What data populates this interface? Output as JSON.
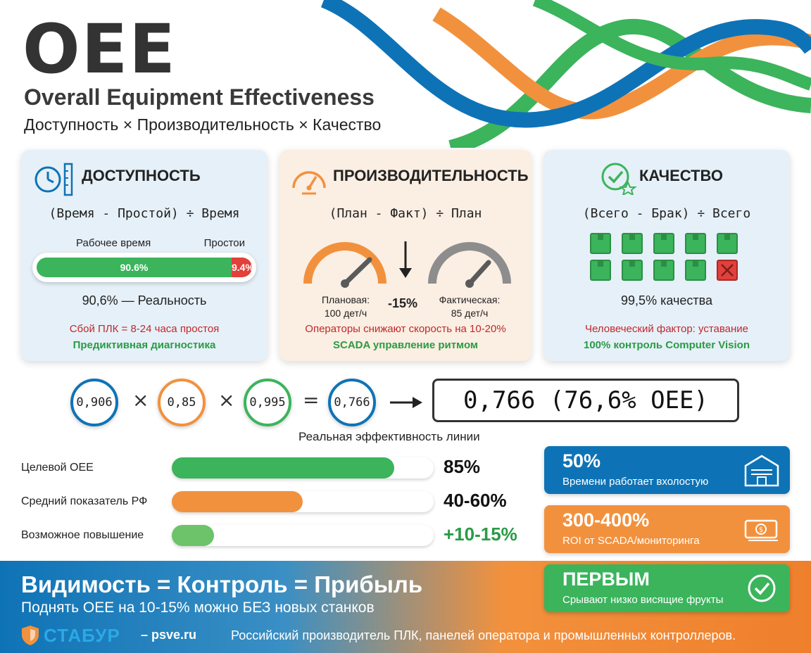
{
  "header": {
    "title": "OEE",
    "subtitle": "Overall Equipment Effectiveness",
    "formula": "Доступность × Производительность × Качество"
  },
  "colors": {
    "blue": "#0e73b6",
    "orange": "#f2913d",
    "green": "#3bb45c",
    "red": "#e2403a"
  },
  "cards": {
    "availability": {
      "icon": "clock-ruler-icon",
      "title": "ДОСТУПНОСТЬ",
      "formula": "(Время - Простой) ÷ Время",
      "work_label": "Рабочее время",
      "down_label": "Простои",
      "work_value": "90.6%",
      "down_value": "9.4%",
      "work_fraction": 0.906,
      "result": "90,6% — Реальность",
      "warning": "Сбой ПЛК = 8-24 часа простоя",
      "fix": "Предиктивная диагностика"
    },
    "performance": {
      "icon": "speedometer-icon",
      "title": "ПРОИЗВОДИТЕЛЬНОСТЬ",
      "formula": "(План - Факт) ÷ План",
      "planned_label": "Плановая:",
      "planned_value": "100 дет/ч",
      "delta": "-15%",
      "actual_label": "Фактическая:",
      "actual_value": "85 дет/ч",
      "warning": "Операторы снижают скорость на 10-20%",
      "fix": "SCADA управление ритмом"
    },
    "quality": {
      "icon": "check-star-icon",
      "title": "КАЧЕСТВО",
      "formula": "(Всего - Брак) ÷ Всего",
      "good_count": 9,
      "defect_count": 1,
      "result": "99,5% качества",
      "warning": "Человеческий фактор: уставание",
      "fix": "100% контроль Computer Vision"
    }
  },
  "equation": {
    "a": "0,906",
    "b": "0,85",
    "c": "0,995",
    "result_small": "0,766",
    "times": "×",
    "equals": "=",
    "result_box": "0,766 (76,6% OEE)",
    "caption": "Реальная эффективность линии"
  },
  "comparison": [
    {
      "label": "Целевой OEE",
      "value": "85%",
      "fill": 0.85,
      "color": "#3bb45c",
      "value_color": "#111111"
    },
    {
      "label": "Средний показатель РФ",
      "value": "40-60%",
      "fill": 0.5,
      "color": "#f2913d",
      "value_color": "#111111"
    },
    {
      "label": "Возможное повышение",
      "value": "+10-15%",
      "fill": 0.15,
      "color": "#6cc36a",
      "value_color": "#2a9b45"
    }
  ],
  "stats": [
    {
      "big": "50%",
      "small": "Времени работает вхолостую",
      "icon": "warehouse-icon",
      "color": "#0e73b6"
    },
    {
      "big": "300-400%",
      "small": "ROI от SCADA/мониторинга",
      "icon": "money-icon",
      "color": "#f2913d"
    },
    {
      "big": "ПЕРВЫМ",
      "small": "Срывают низко висящие фрукты",
      "icon": "check-circle-icon",
      "color": "#3bb45c"
    }
  ],
  "banner": {
    "title": "Видимость = Контроль = Прибыль",
    "subtitle": "Поднять OEE на 10-15% можно БЕЗ новых станков",
    "brand": "СТАБУР",
    "site": "– psve.ru",
    "description": "Российский производитель ПЛК, панелей оператора и промышленных контроллеров."
  }
}
